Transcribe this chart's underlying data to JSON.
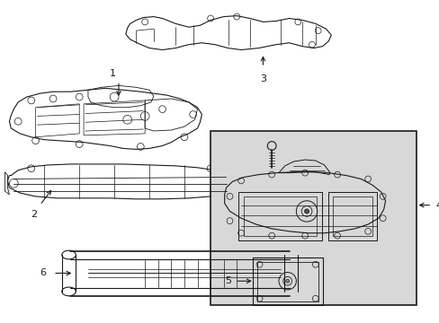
{
  "background_color": "#ffffff",
  "line_color": "#1a1a1a",
  "label_color": "#000000",
  "box_fill": "#d8d8d8",
  "figsize": [
    4.89,
    3.6
  ],
  "dpi": 100
}
